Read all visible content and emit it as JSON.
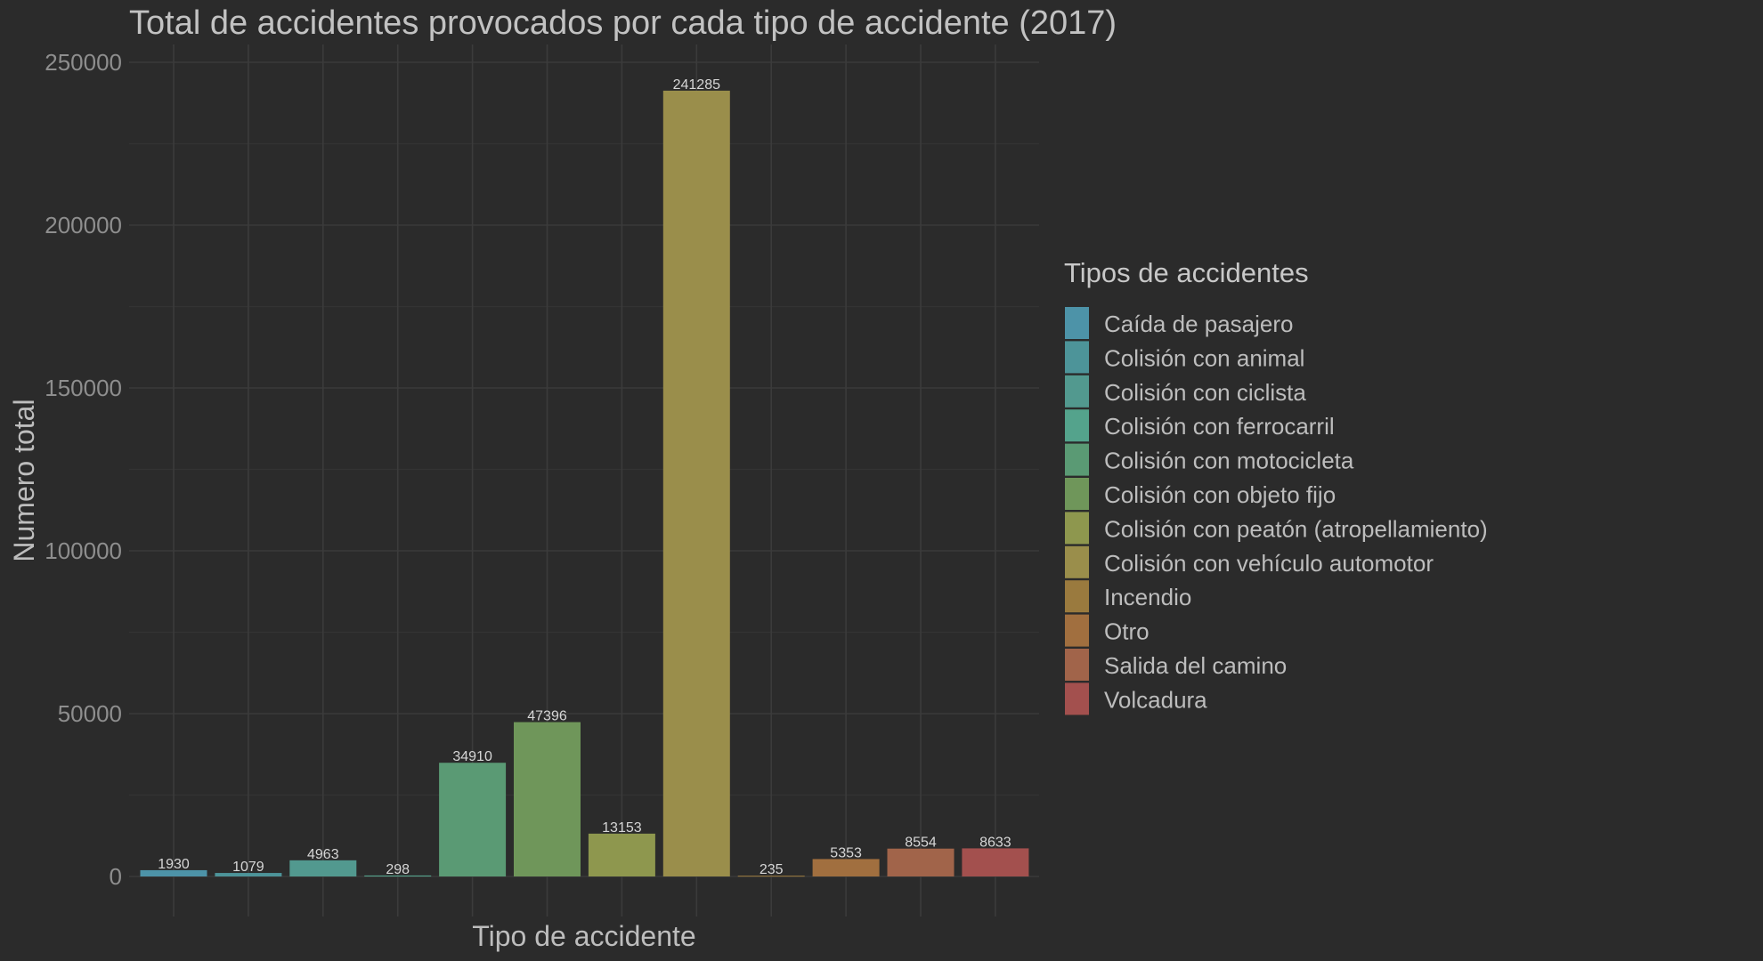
{
  "chart_data": {
    "type": "bar",
    "title": "Total de accidentes provocados por cada tipo de accidente  (2017)",
    "xlabel": "Tipo de accidente",
    "ylabel": "Numero total",
    "ylim": [
      0,
      250000
    ],
    "yticks": [
      "0",
      "50000",
      "100000",
      "150000",
      "200000",
      "250000"
    ],
    "ytick_values": [
      0,
      50000,
      100000,
      150000,
      200000,
      250000
    ],
    "grid": true,
    "legend_title": "Tipos de accidentes",
    "legend_position": "right",
    "categories": [
      "Caída de pasajero",
      "Colisión con animal",
      "Colisión con ciclista",
      "Colisión con ferrocarril",
      "Colisión con motocicleta",
      "Colisión con objeto fijo",
      "Colisión con peatón (atropellamiento)",
      "Colisión con vehículo automotor",
      "Incendio",
      "Otro",
      "Salida del camino",
      "Volcadura"
    ],
    "values": [
      1930,
      1079,
      4963,
      298,
      34910,
      47396,
      13153,
      241285,
      235,
      5353,
      8554,
      8633
    ],
    "value_labels": [
      "1930",
      "1079",
      "4963",
      "298",
      "34910",
      "47396",
      "13153",
      "241285",
      "235",
      "5353",
      "8554",
      "8633"
    ],
    "colors": [
      "#4d93a8",
      "#4d9499",
      "#52998f",
      "#54a38c",
      "#5a9a74",
      "#6f965a",
      "#8e974e",
      "#9a8e4b",
      "#9a7a3e",
      "#a16f3f",
      "#a1644a",
      "#a3504e"
    ]
  }
}
